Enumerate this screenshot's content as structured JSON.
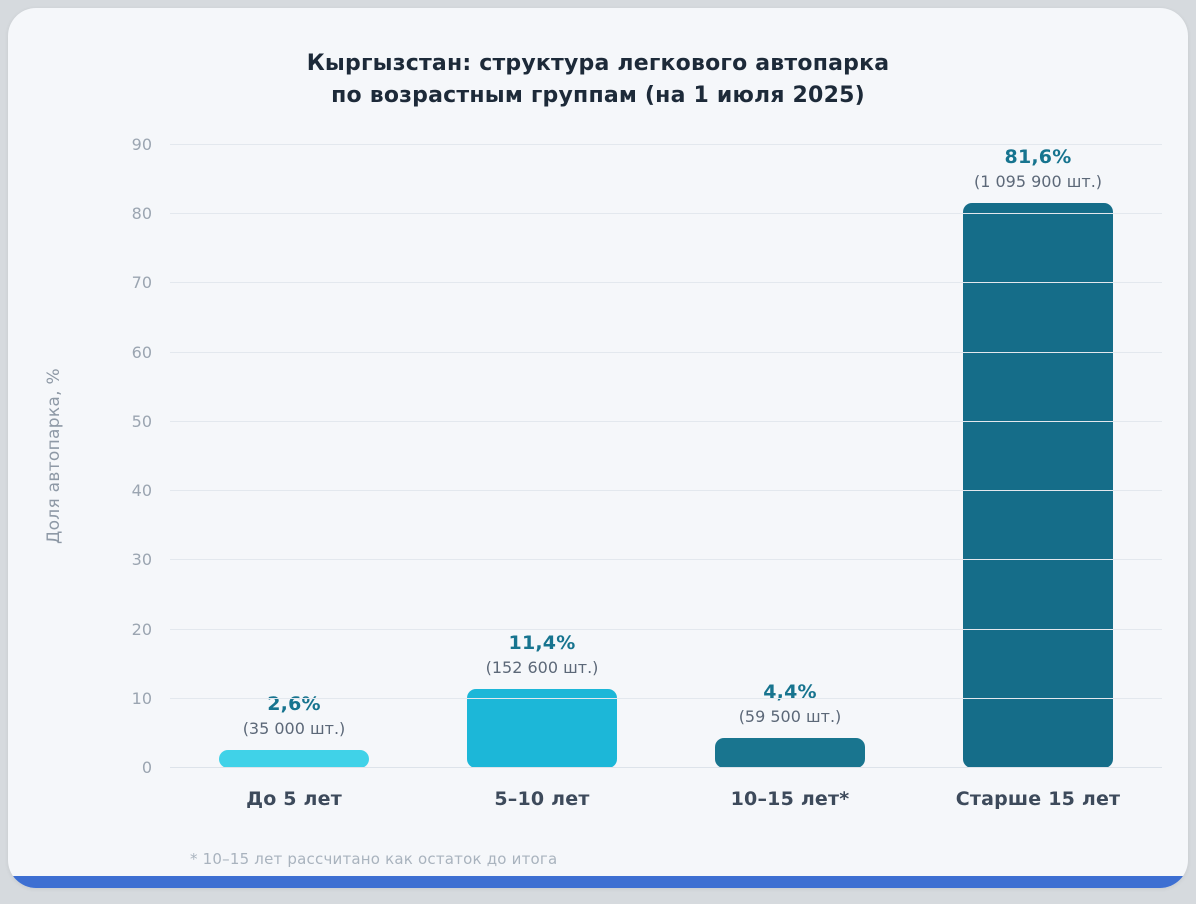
{
  "chart_data": {
    "type": "bar",
    "title": "Кыргызстан: структура легкового автопарка по возрастным группам (на 1 июля 2025)",
    "title_lines": [
      "Кыргызстан: структура легкового автопарка",
      "по возрастным группам (на 1 июля 2025)"
    ],
    "ylabel": "Доля автопарка, %",
    "ylim": [
      0,
      90
    ],
    "ytick_step": 10,
    "grid": true,
    "legend": "none",
    "categories": [
      "До 5 лет",
      "5–10 лет",
      "10–15 лет*",
      "Старше 15 лет"
    ],
    "values": [
      2.6,
      11.4,
      4.4,
      81.6
    ],
    "value_labels": [
      "2,6%",
      "11,4%",
      "4,4%",
      "81,6%"
    ],
    "count_labels": [
      "(35 000 шт.)",
      "(152 600 шт.)",
      "(59 500 шт.)",
      "(1 095 900 шт.)"
    ],
    "bar_colors": [
      "#40d2e8",
      "#1cb7d8",
      "#19758f",
      "#156d89"
    ],
    "value_label_color": "#17748f",
    "count_label_color": "#5c6878",
    "footnote": "* 10–15 лет рассчитано как остаток до итога",
    "accent_strip_color": "#3d6fd2"
  }
}
